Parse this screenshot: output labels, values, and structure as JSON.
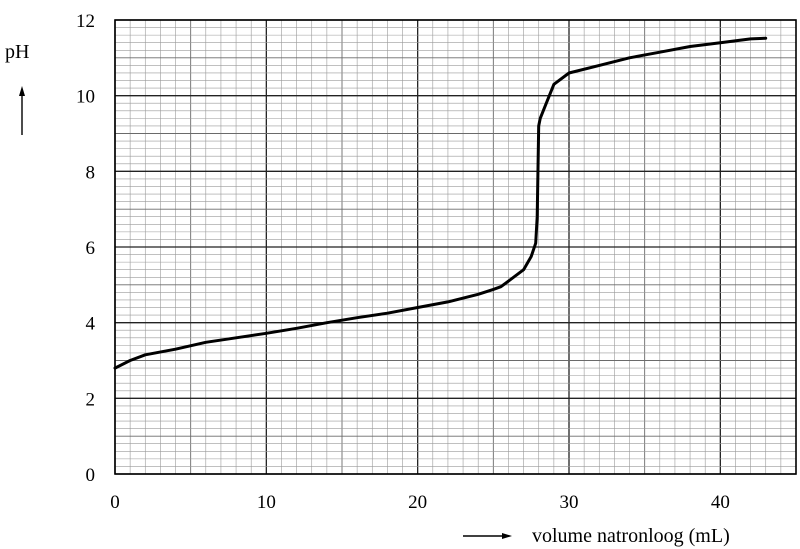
{
  "chart_data": {
    "type": "line",
    "title": "",
    "xlabel": "volume natronloog (mL)",
    "ylabel": "pH",
    "xlim": [
      0,
      45
    ],
    "ylim": [
      0,
      12
    ],
    "grid": true,
    "x_ticks": [
      0,
      10,
      20,
      30,
      40
    ],
    "y_ticks": [
      0,
      2,
      4,
      6,
      8,
      10,
      12
    ],
    "series": [
      {
        "x": [
          0,
          1,
          2,
          4,
          6,
          8,
          10,
          12,
          14,
          16,
          18,
          20,
          22,
          24,
          25,
          25.5,
          26,
          27,
          27.5,
          27.8,
          27.9,
          28,
          28.1,
          28.5,
          29,
          30,
          32,
          34,
          36,
          38,
          40,
          42,
          43
        ],
        "y": [
          2.8,
          3.0,
          3.15,
          3.3,
          3.48,
          3.6,
          3.72,
          3.85,
          4.0,
          4.13,
          4.25,
          4.4,
          4.55,
          4.75,
          4.88,
          4.95,
          5.1,
          5.4,
          5.75,
          6.1,
          6.8,
          9.2,
          9.4,
          9.8,
          10.3,
          10.6,
          10.8,
          11.0,
          11.15,
          11.3,
          11.4,
          11.5,
          11.52
        ]
      }
    ]
  }
}
